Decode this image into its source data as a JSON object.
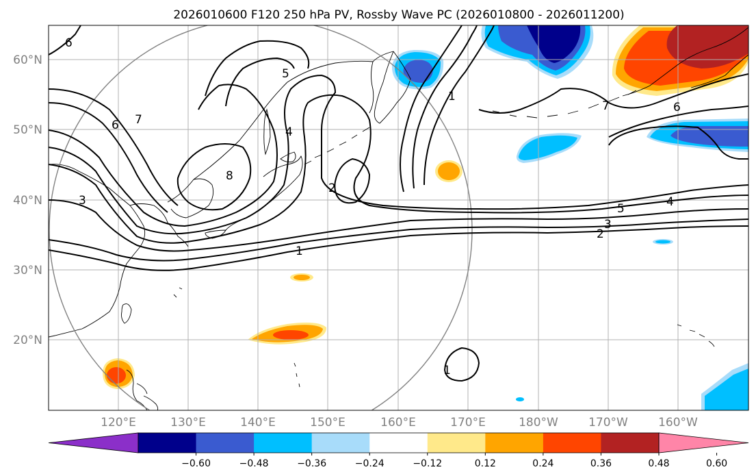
{
  "title": "2026010600 F120 250 hPa PV, Rossby Wave PC (2026010800 - 2026011200)",
  "lon_labels": [
    "120°E",
    "130°E",
    "140°E",
    "150°E",
    "160°E",
    "170°E",
    "180°W",
    "170°W",
    "160°W"
  ],
  "lat_labels": [
    "60°N",
    "50°N",
    "40°N",
    "30°N",
    "20°N"
  ],
  "contour_labels": [
    "6",
    "5",
    "7",
    "6",
    "8",
    "4",
    "3",
    "2",
    "1",
    "1",
    "7",
    "6",
    "5",
    "4",
    "3",
    "2",
    "1"
  ],
  "colorbar": {
    "ticks": [
      "−0.60",
      "−0.48",
      "−0.36",
      "−0.24",
      "−0.12",
      "0.12",
      "0.24",
      "0.36",
      "0.48",
      "0.60"
    ],
    "colors": [
      "#8b2fc9",
      "#00008b",
      "#3a5bd0",
      "#00bfff",
      "#a8dcfa",
      "#ffffff",
      "#ffe98a",
      "#ffa500",
      "#ff4500",
      "#b22222",
      "#ff85a8"
    ]
  },
  "colors": {
    "contour": "#000000",
    "coast": "#000000",
    "grid": "#b0b0b0",
    "circle": "#808080",
    "tick_label": "#808080"
  }
}
